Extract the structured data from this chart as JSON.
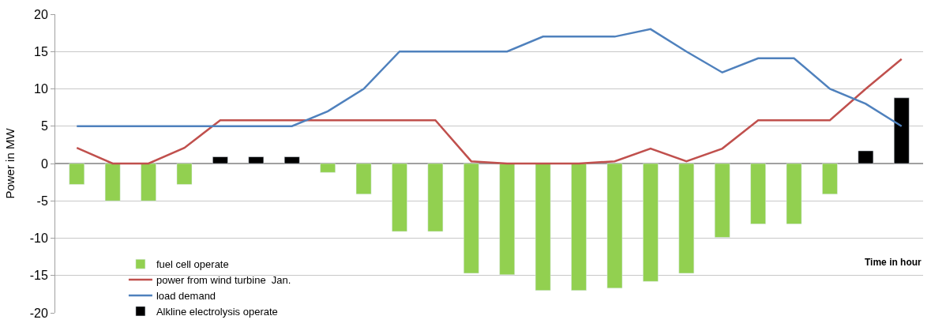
{
  "chart_data": {
    "type": "bar",
    "xlabel": "Time in hour",
    "ylabel": "Power in MW",
    "categories": [
      null,
      null,
      null,
      null,
      null,
      null,
      null,
      null,
      null,
      null,
      null,
      null,
      null,
      null,
      null,
      null,
      null,
      null,
      null,
      null,
      null,
      null,
      null,
      null
    ],
    "series": [
      {
        "name": "fuel cell operate",
        "color": "#92d050",
        "values": [
          -2.8,
          -5,
          -5,
          -2.8,
          null,
          null,
          null,
          -1.2,
          -4.1,
          -9.1,
          -9.1,
          -14.7,
          -14.9,
          -17,
          -17,
          -16.7,
          -15.8,
          -14.7,
          -9.9,
          -8.1,
          -8.1,
          -4.1,
          null,
          null
        ]
      },
      {
        "name": "power from wind turbine  Jan.",
        "type": "line",
        "color": "#c0504d",
        "values": [
          2.1,
          0,
          0,
          2.1,
          5.8,
          5.8,
          5.8,
          5.8,
          5.8,
          5.8,
          5.8,
          0.3,
          0,
          0,
          0,
          0.3,
          2,
          0.3,
          2,
          5.8,
          5.8,
          5.8,
          10,
          14
        ]
      },
      {
        "name": "load demand",
        "type": "line",
        "color": "#4f81bd",
        "values": [
          5,
          5,
          5,
          5,
          5,
          5,
          5,
          7,
          10,
          15,
          15,
          15,
          15,
          17,
          17,
          17,
          18,
          15,
          12.2,
          14.1,
          14.1,
          10,
          8,
          5
        ]
      },
      {
        "name": "Alkline electrolysis operate",
        "color": "#000000",
        "values": [
          null,
          null,
          null,
          null,
          0.9,
          0.9,
          0.9,
          null,
          null,
          null,
          null,
          null,
          null,
          null,
          null,
          null,
          null,
          null,
          null,
          null,
          null,
          null,
          1.7,
          8.8
        ]
      }
    ],
    "ylim": [
      -20,
      20
    ],
    "yticks": [
      -20,
      -15,
      -10,
      -5,
      0,
      5,
      10,
      15,
      20
    ],
    "grid": "y",
    "legend": "bottom",
    "tick_labels": "y",
    "line_style": "solid",
    "marker": "none"
  }
}
